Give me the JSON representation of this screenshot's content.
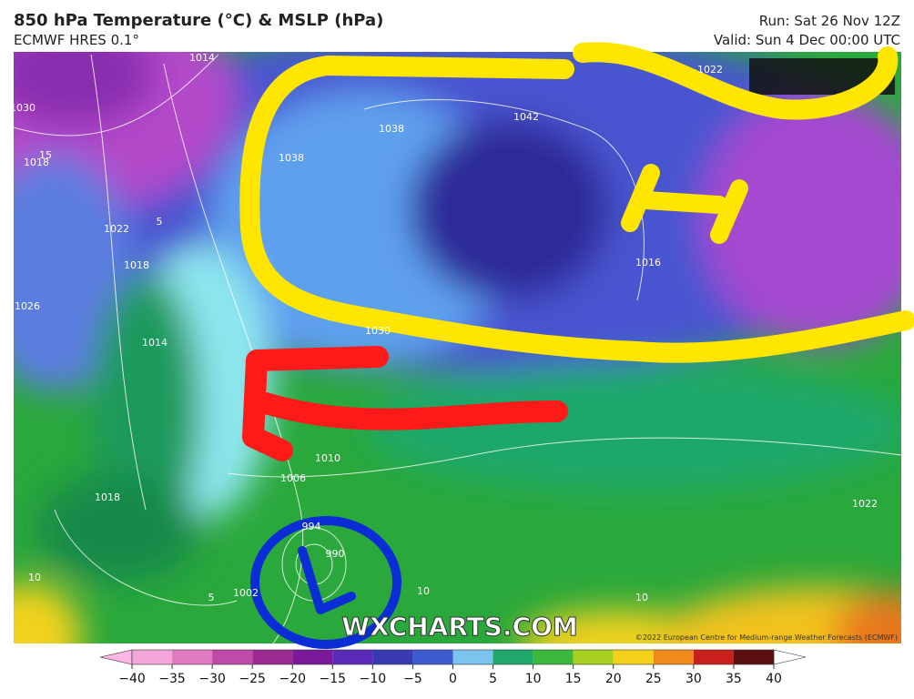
{
  "header": {
    "title": "850 hPa Temperature (°C) & MSLP (hPa)",
    "subtitle": "ECMWF HRES 0.1°",
    "run": "Run: Sat 26 Nov 12Z",
    "valid": "Valid: Sun 4 Dec 00:00 UTC"
  },
  "map": {
    "labels": [
      "1014",
      "1030",
      "1018",
      "1022",
      "1018",
      "1026",
      "1014",
      "1038",
      "1038",
      "1042",
      "1022",
      "1030",
      "1010",
      "1006",
      "1018",
      "994",
      "990",
      "1002",
      "1022",
      "1016",
      "15",
      "5",
      "10",
      "10",
      "10",
      "5"
    ],
    "watermark": "WXCHARTS.COM",
    "copyright": "©2022 European Centre for Medium-range Weather Forecasts (ECMWF)"
  },
  "colorbar": {
    "ticks": [
      {
        "value": -40,
        "label": "−40"
      },
      {
        "value": -35,
        "label": "−35"
      },
      {
        "value": -30,
        "label": "−30"
      },
      {
        "value": -25,
        "label": "−25"
      },
      {
        "value": -20,
        "label": "−20"
      },
      {
        "value": -15,
        "label": "−15"
      },
      {
        "value": -10,
        "label": "−10"
      },
      {
        "value": -5,
        "label": "−5"
      },
      0,
      5,
      10,
      15,
      20,
      25,
      30,
      35,
      40
    ],
    "colors": [
      "#ffb6e4",
      "#f4a6d8",
      "#e07ac0",
      "#c04aa8",
      "#9a2a90",
      "#7a1a9a",
      "#5a2ab8",
      "#3a3ab0",
      "#3f5bd0",
      "#7ac4ee",
      "#1fa86a",
      "#3cb83c",
      "#a8d020",
      "#f5d21a",
      "#f08a1a",
      "#c8201a",
      "#5a1010",
      "#8a8a8a",
      "#ffffff"
    ]
  }
}
